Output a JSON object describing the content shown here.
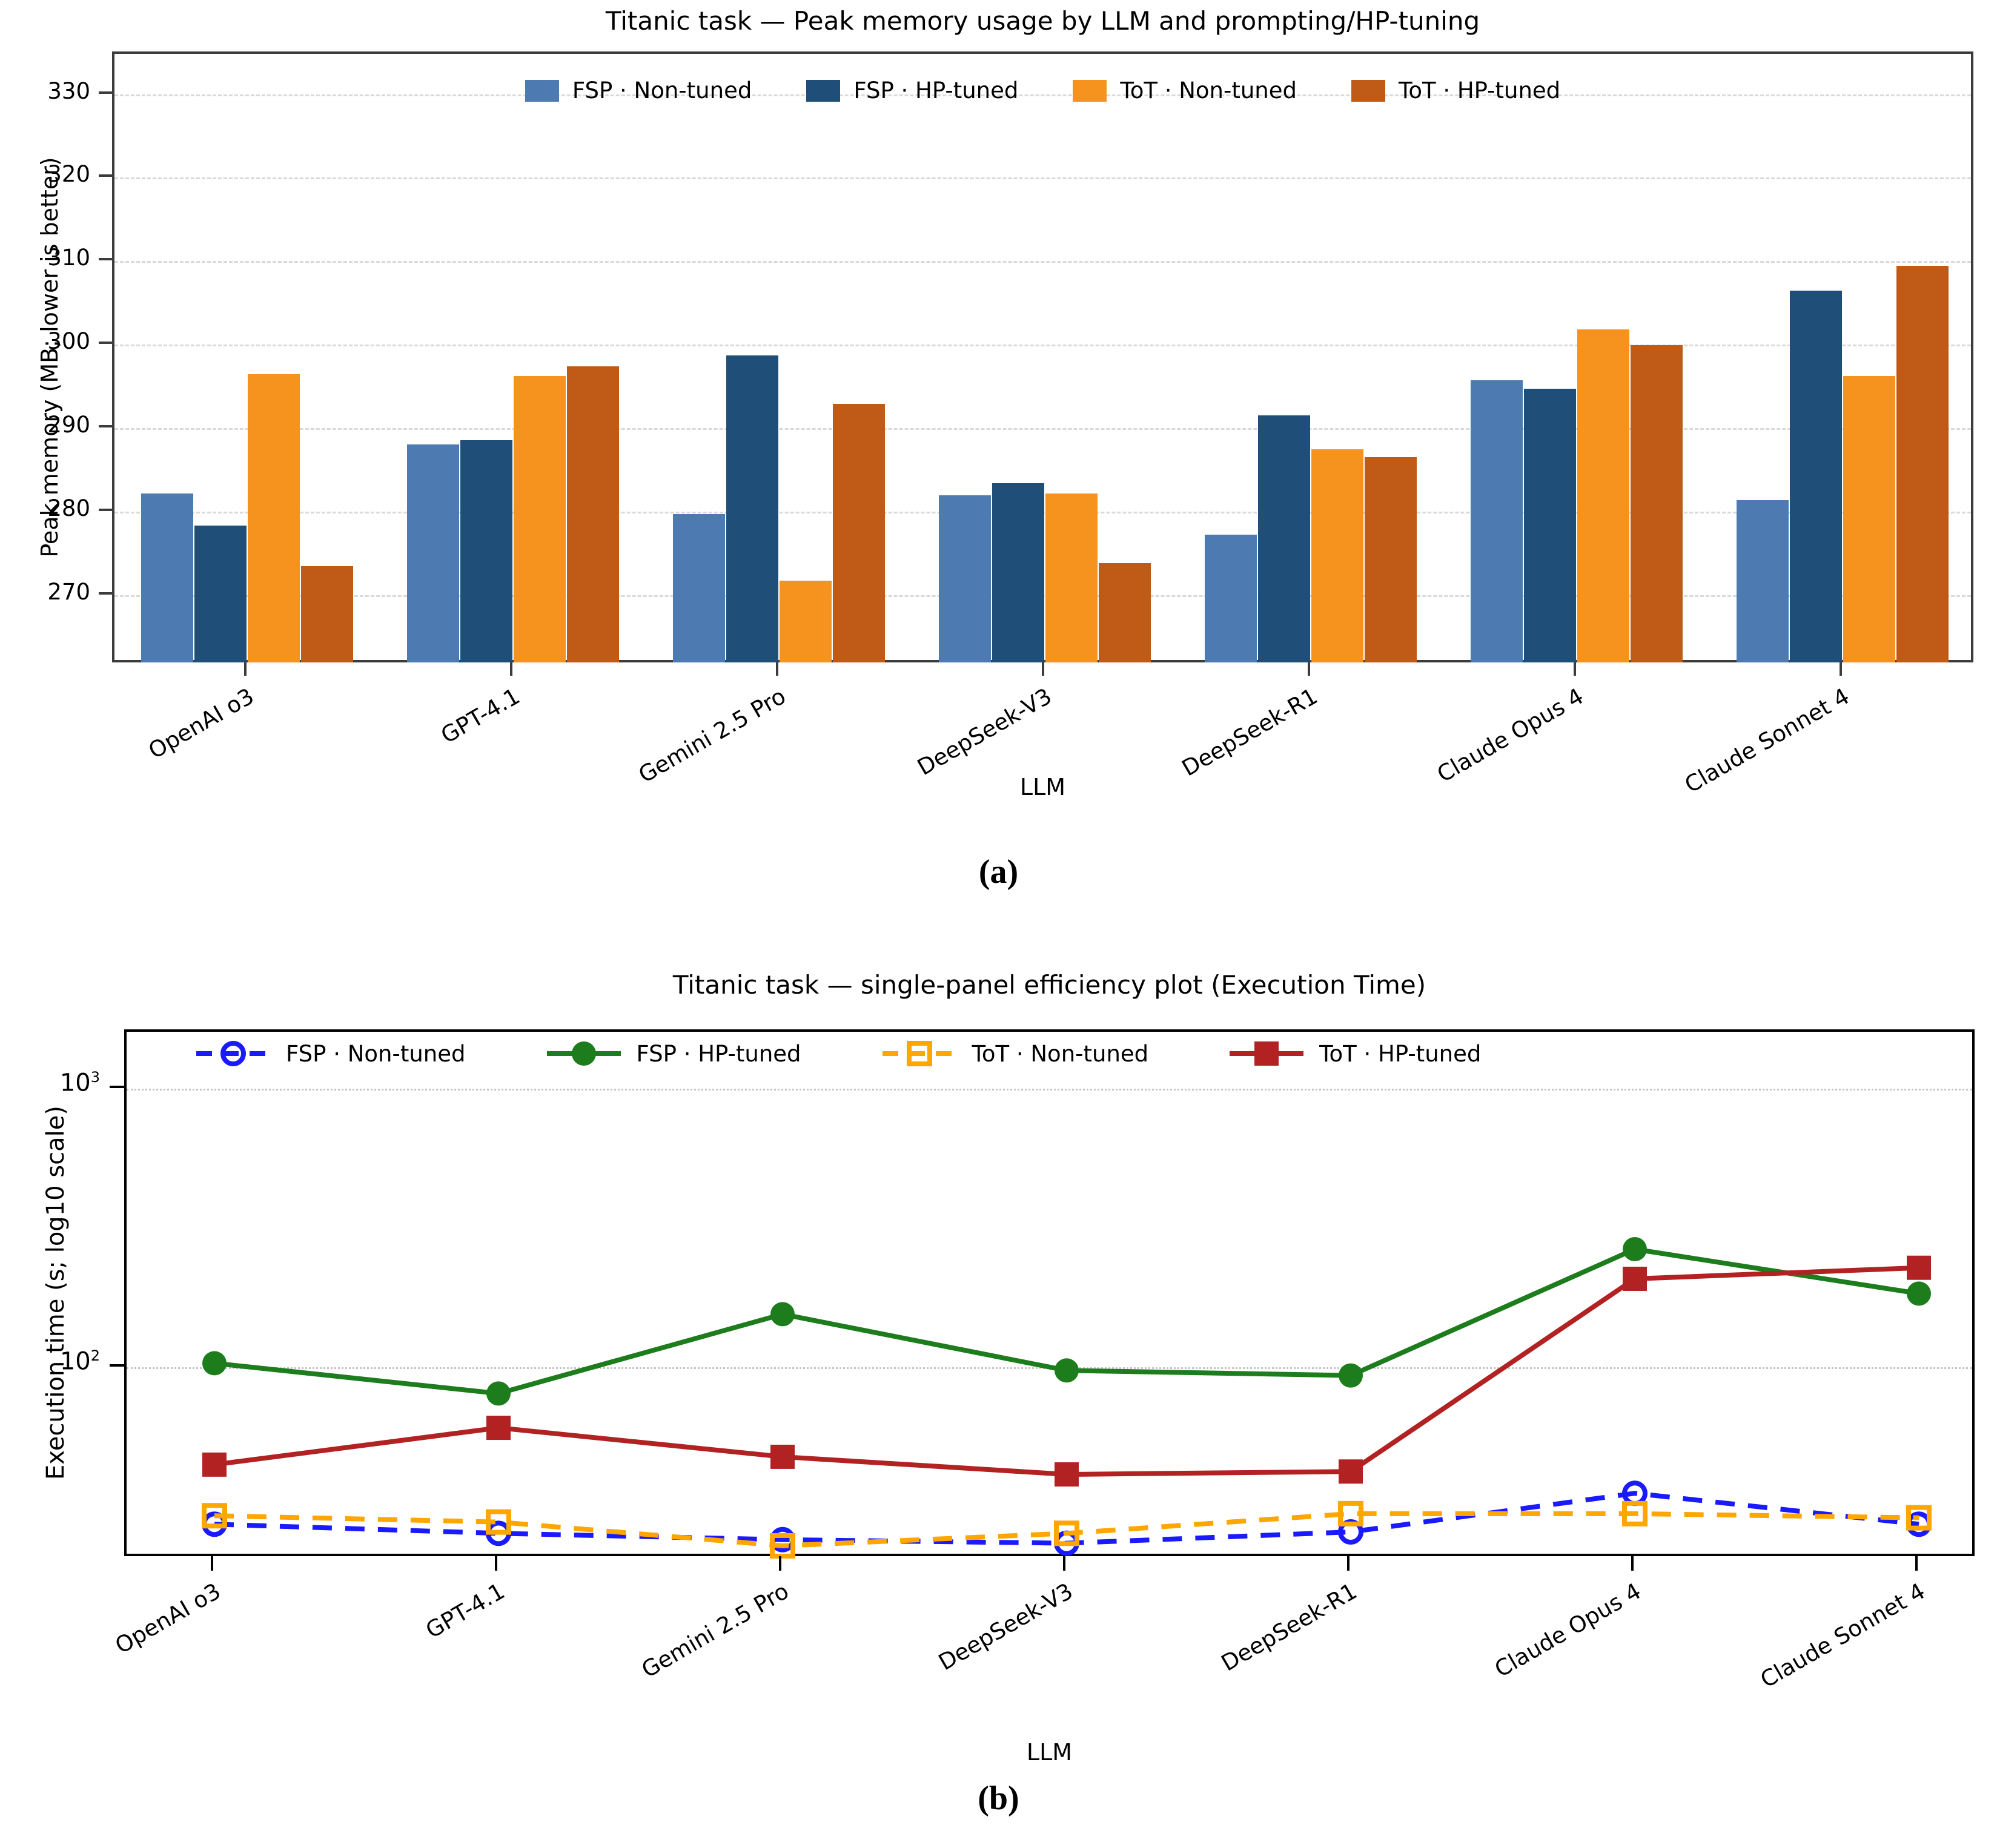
{
  "page": {
    "background": "#ffffff"
  },
  "captions": {
    "a": "(a)",
    "b": "(b)"
  },
  "chart_data": [
    {
      "id": "peak-memory-bar-chart",
      "type": "bar",
      "title": "Titanic task — Peak memory usage by LLM and prompting/HP-tuning",
      "xlabel": "LLM",
      "ylabel": "Peak memory (MB; lower is better)",
      "categories": [
        "OpenAI o3",
        "GPT-4.1",
        "Gemini 2.5 Pro",
        "DeepSeek-V3",
        "DeepSeek-R1",
        "Claude Opus 4",
        "Claude Sonnet 4"
      ],
      "series": [
        {
          "name": "FSP · Non-tuned",
          "color": "#4d7ab0",
          "values": [
            282.2,
            288.1,
            279.8,
            282.0,
            277.3,
            295.8,
            281.4
          ]
        },
        {
          "name": "FSP · HP-tuned",
          "color": "#1f4e79",
          "values": [
            278.4,
            288.6,
            298.8,
            283.5,
            291.6,
            294.8,
            306.5
          ]
        },
        {
          "name": "ToT · Non-tuned",
          "color": "#f6921e",
          "values": [
            296.5,
            296.3,
            271.8,
            282.2,
            287.5,
            301.9,
            296.3
          ]
        },
        {
          "name": "ToT · HP-tuned",
          "color": "#bf5a17",
          "values": [
            273.5,
            297.5,
            293.0,
            273.9,
            286.6,
            300.0,
            309.5
          ]
        }
      ],
      "ylim": [
        261.7,
        334.9
      ],
      "yticks": [
        270,
        280,
        290,
        300,
        310,
        320,
        330
      ],
      "grid": "horizontal dashed",
      "legend_position": "top center inside"
    },
    {
      "id": "execution-time-line-chart",
      "type": "line",
      "title": "Titanic task — single-panel efficiency plot (Execution Time)",
      "xlabel": "LLM",
      "ylabel": "Execution time (s; log10 scale)",
      "yscale": "log10",
      "categories": [
        "OpenAI o3",
        "GPT-4.1",
        "Gemini 2.5 Pro",
        "DeepSeek-V3",
        "DeepSeek-R1",
        "Claude Opus 4",
        "Claude Sonnet 4"
      ],
      "series": [
        {
          "name": "FSP · Non-tuned",
          "color": "#1a1aff",
          "line": "dashed",
          "marker": "circle-open",
          "values": [
            27.5,
            25.5,
            24.2,
            23.5,
            25.8,
            35.5,
            27.5
          ]
        },
        {
          "name": "FSP · HP-tuned",
          "color": "#1d7d1d",
          "line": "solid",
          "marker": "circle-filled",
          "values": [
            104,
            81,
            156,
            98,
            94,
            267,
            185
          ]
        },
        {
          "name": "ToT · Non-tuned",
          "color": "#ffa600",
          "line": "dashed",
          "marker": "square-open",
          "values": [
            29.5,
            28.0,
            23.0,
            25.5,
            30.0,
            30.0,
            29.0
          ]
        },
        {
          "name": "ToT · HP-tuned",
          "color": "#b22222",
          "line": "solid",
          "marker": "square-filled",
          "values": [
            45,
            61,
            48,
            41.5,
            42.5,
            209,
            229
          ]
        }
      ],
      "ylim": [
        20.7,
        1610
      ],
      "yticks": [
        100,
        1000
      ],
      "grid": "horizontal dotted",
      "legend_position": "top left inside"
    }
  ]
}
